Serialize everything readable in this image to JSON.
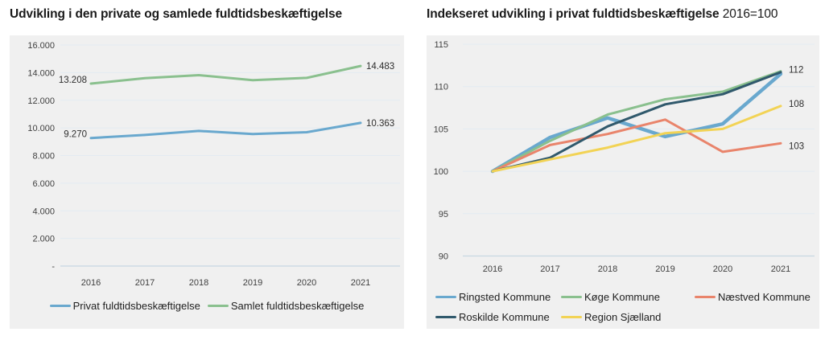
{
  "theme": {
    "background": "#ffffff",
    "panel_background": "#f0f0f0",
    "gridline_color": "#e3ebf2",
    "axis_line_color": "#c7d7e3",
    "title_color": "#1a1a1a",
    "tick_label_color": "#404040"
  },
  "chart_data": [
    {
      "type": "line",
      "title": "Udvikling i den private og samlede fuldtidsbeskæftigelse",
      "title_suffix": "",
      "categories": [
        "2016",
        "2017",
        "2018",
        "2019",
        "2020",
        "2021"
      ],
      "ylim": [
        0,
        16000
      ],
      "grid": true,
      "legend_position": "bottom-center",
      "yticks": [
        {
          "value": 16000,
          "label": "16.000"
        },
        {
          "value": 14000,
          "label": "14.000"
        },
        {
          "value": 12000,
          "label": "12.000"
        },
        {
          "value": 10000,
          "label": "10.000"
        },
        {
          "value": 8000,
          "label": "8.000"
        },
        {
          "value": 6000,
          "label": "6.000"
        },
        {
          "value": 4000,
          "label": "4.000"
        },
        {
          "value": 2000,
          "label": "2.000"
        },
        {
          "value": 0,
          "label": "-"
        }
      ],
      "series": [
        {
          "name": "Privat fuldtidsbeskæftigelse",
          "color": "#69a8ce",
          "values": [
            9270,
            9490,
            9780,
            9560,
            9690,
            10363
          ],
          "start_label": "9.270",
          "end_label": "10.363",
          "thick": false
        },
        {
          "name": "Samlet fuldtidsbeskæftigelse",
          "color": "#8ac08e",
          "values": [
            13208,
            13600,
            13820,
            13450,
            13620,
            14483
          ],
          "start_label": "13.208",
          "end_label": "14.483",
          "thick": false
        }
      ]
    },
    {
      "type": "line",
      "title": "Indekseret udvikling i privat fuldtidsbeskæftigelse",
      "title_suffix": "2016=100",
      "categories": [
        "2016",
        "2017",
        "2018",
        "2019",
        "2020",
        "2021"
      ],
      "ylim": [
        90,
        115
      ],
      "grid": true,
      "legend_position": "bottom-left",
      "yticks": [
        {
          "value": 115,
          "label": "115"
        },
        {
          "value": 110,
          "label": "110"
        },
        {
          "value": 105,
          "label": "105"
        },
        {
          "value": 100,
          "label": "100"
        },
        {
          "value": 95,
          "label": "95"
        },
        {
          "value": 90,
          "label": "90"
        }
      ],
      "series": [
        {
          "name": "Ringsted Kommune",
          "color": "#69a8ce",
          "values": [
            100,
            104.0,
            106.3,
            104.1,
            105.6,
            111.5
          ],
          "end_label": "112",
          "end_label_value": 112,
          "thick": true
        },
        {
          "name": "Køge Kommune",
          "color": "#8ac08e",
          "values": [
            100,
            103.6,
            106.7,
            108.5,
            109.4,
            111.8
          ],
          "thick": false
        },
        {
          "name": "Næstved Kommune",
          "color": "#e9846b",
          "values": [
            100,
            103.1,
            104.4,
            106.1,
            102.3,
            103.3
          ],
          "end_label": "103",
          "end_label_value": 103,
          "thick": false
        },
        {
          "name": "Roskilde Kommune",
          "color": "#30596c",
          "values": [
            100,
            101.6,
            105.3,
            107.9,
            109.1,
            111.7
          ],
          "thick": false
        },
        {
          "name": "Region Sjælland",
          "color": "#f2d355",
          "values": [
            100,
            101.4,
            102.8,
            104.5,
            105.0,
            107.7
          ],
          "end_label": "108",
          "end_label_value": 108,
          "thick": false
        }
      ]
    }
  ]
}
